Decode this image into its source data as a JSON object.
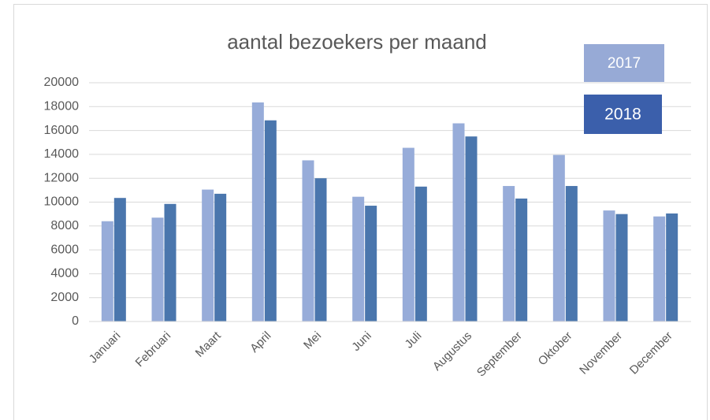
{
  "chart_data": {
    "type": "bar",
    "title": "aantal bezoekers per maand",
    "categories": [
      "Januari",
      "Februari",
      "Maart",
      "April",
      "Mei",
      "Juni",
      "Juli",
      "Augustus",
      "September",
      "Oktober",
      "November",
      "December"
    ],
    "series": [
      {
        "name": "2017",
        "color": "#97acd9",
        "values": [
          8400,
          8700,
          11050,
          18350,
          13500,
          10450,
          14550,
          16600,
          11350,
          13950,
          9300,
          8800
        ]
      },
      {
        "name": "2018",
        "color": "#4a76ad",
        "values": [
          10350,
          9850,
          10700,
          16850,
          12000,
          9700,
          11300,
          15500,
          10300,
          11350,
          9000,
          9050
        ]
      }
    ],
    "legend_colors": [
      "#97aad6",
      "#3b5fab"
    ],
    "ylim": [
      0,
      20000
    ],
    "yticks": [
      0,
      2000,
      4000,
      6000,
      8000,
      10000,
      12000,
      14000,
      16000,
      18000,
      20000
    ],
    "grid": true
  }
}
